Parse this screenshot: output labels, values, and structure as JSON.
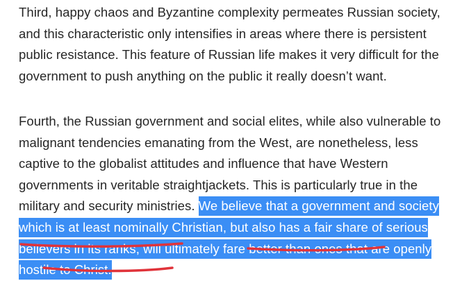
{
  "article": {
    "paragraph_1": "Third, happy chaos and Byzantine complexity permeates Russian society, and this characteristic only intensifies in areas where there is persistent public resistance. This feature of Russian life makes it very difficult for the government to push anything on the public it really doesn’t want.",
    "paragraph_2_plain": "Fourth, the Russian government and social elites, while also vulnerable to malignant tendencies emanating from the West, are nonetheless, less captive to the globalist attitudes and influence that have Western governments in veritable straightjackets. This is particularly true in the military and security ministries. ",
    "paragraph_2_selected": "We believe that a government and society which is at least nominally Christian, but also has a fair share of serious believers in its ranks, will ultimately fare better than ones that are openly hostile to Christ."
  },
  "colors": {
    "text": "#262626",
    "selection": "#3b8ef5",
    "annotation_underline": "#e0333a"
  }
}
